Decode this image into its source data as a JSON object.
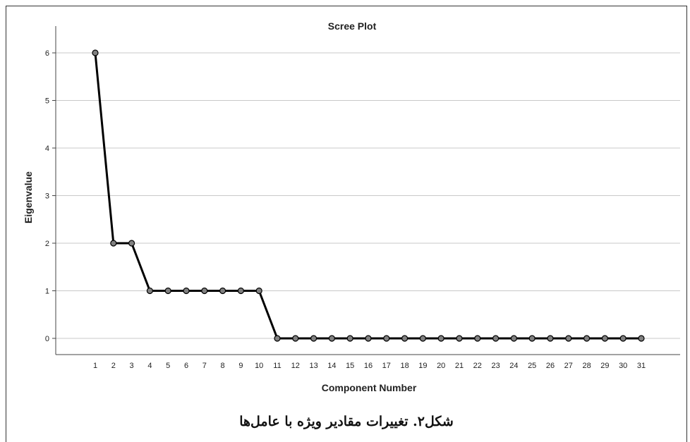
{
  "chart_data": {
    "type": "line",
    "title": "Scree Plot",
    "xlabel": "Component Number",
    "ylabel": "Eigenvalue",
    "x": [
      1,
      2,
      3,
      4,
      5,
      6,
      7,
      8,
      9,
      10,
      11,
      12,
      13,
      14,
      15,
      16,
      17,
      18,
      19,
      20,
      21,
      22,
      23,
      24,
      25,
      26,
      27,
      28,
      29,
      30,
      31
    ],
    "values": [
      6,
      2,
      2,
      1,
      1,
      1,
      1,
      1,
      1,
      1,
      0,
      0,
      0,
      0,
      0,
      0,
      0,
      0,
      0,
      0,
      0,
      0,
      0,
      0,
      0,
      0,
      0,
      0,
      0,
      0,
      0
    ],
    "ylim": [
      0,
      6
    ],
    "yticks": [
      0,
      1,
      2,
      3,
      4,
      5,
      6
    ],
    "grid": "horizontal",
    "line_color": "#000000",
    "marker_color": "#808080"
  },
  "caption": "شکل۲. تغییرات مقادیر ویژه با عامل‌ها"
}
